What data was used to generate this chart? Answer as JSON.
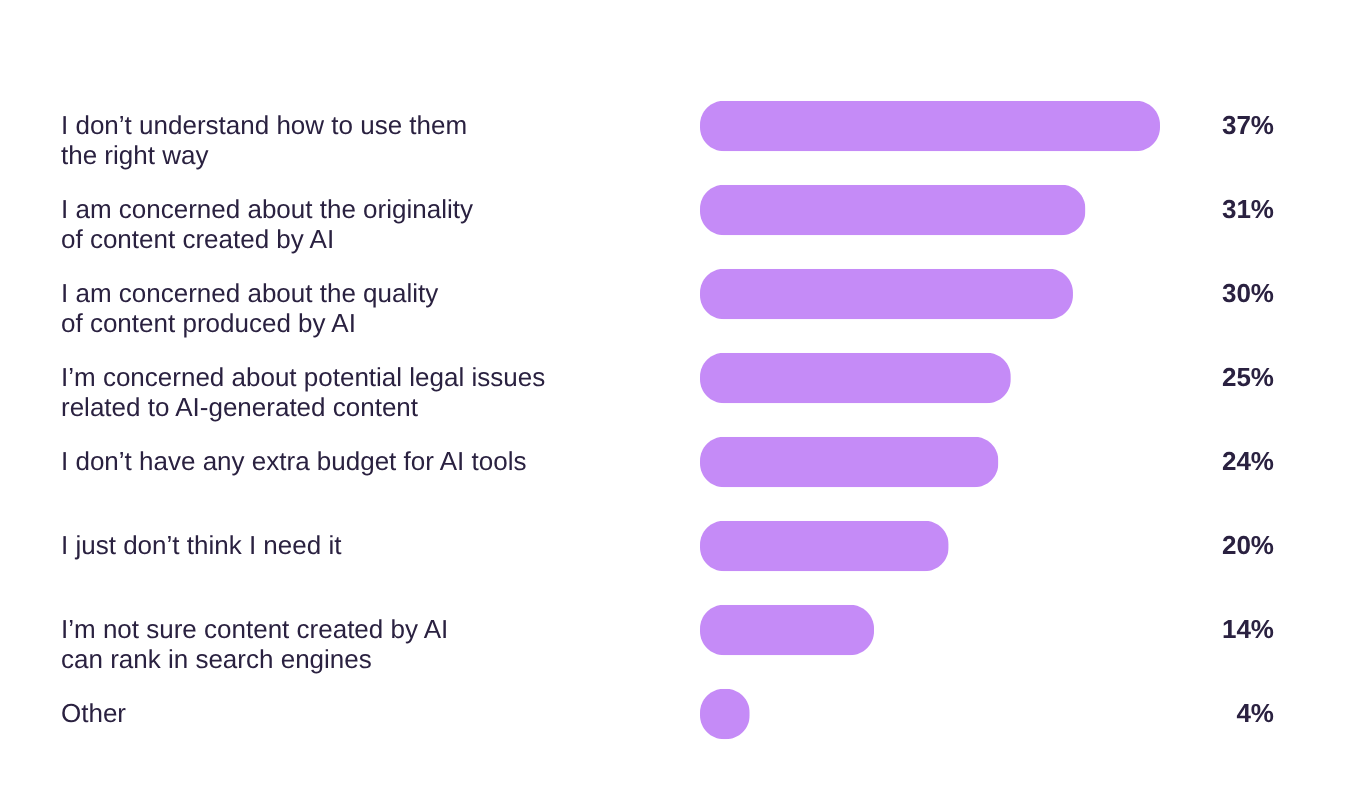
{
  "chart_data": {
    "type": "bar",
    "orientation": "horizontal",
    "color": "#c58bf7",
    "categories": [
      "I don’t understand how to use them\nthe right way",
      "I am concerned about the originality\nof content created by AI",
      "I am concerned about the quality\nof content produced by AI",
      "I’m concerned about potential legal issues\nrelated to AI-generated content",
      "I don’t have any extra budget for AI tools",
      "I just don’t think I need it",
      "I’m not sure content created by AI\ncan rank in search engines",
      "Other"
    ],
    "values": [
      37,
      31,
      30,
      25,
      24,
      20,
      14,
      4
    ],
    "value_labels": [
      "37%",
      "31%",
      "30%",
      "25%",
      "24%",
      "20%",
      "14%",
      "4%"
    ]
  }
}
